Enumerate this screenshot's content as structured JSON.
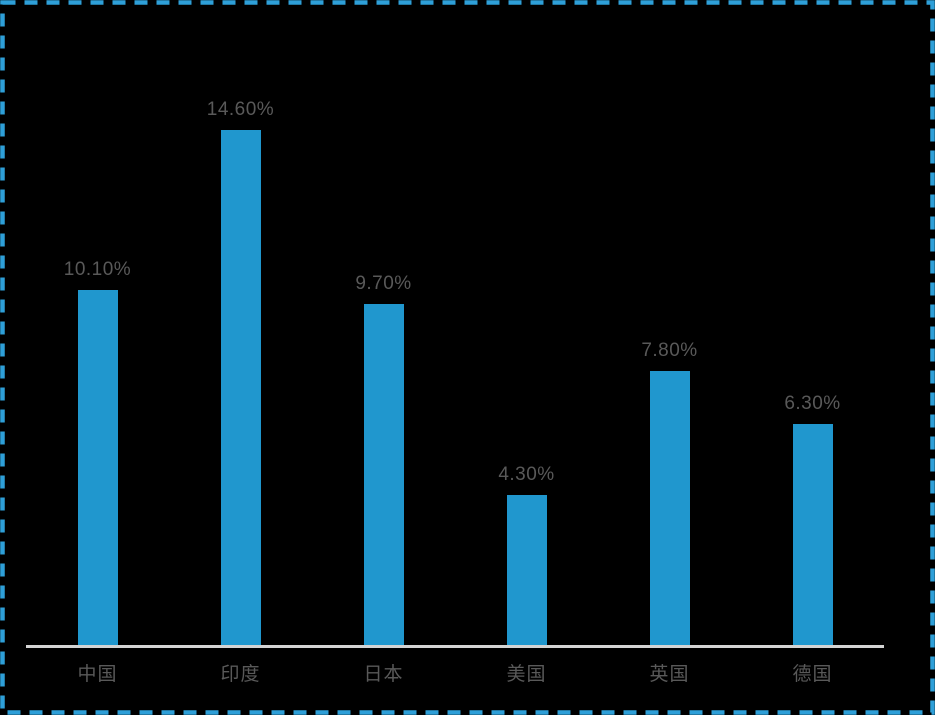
{
  "chart": {
    "background_color": "#000000",
    "border_color": "#2E9FD8",
    "bar_color": "#2097CE",
    "value_label_color": "#595959",
    "category_label_color": "#595959",
    "axis_line_color": "#D4D4D4"
  },
  "chart_data": {
    "type": "bar",
    "categories": [
      "中国",
      "印度",
      "日本",
      "美国",
      "英国",
      "德国"
    ],
    "values": [
      10.1,
      14.6,
      9.7,
      4.3,
      7.8,
      6.3
    ],
    "data_labels": [
      "10.10%",
      "14.60%",
      "9.70%",
      "4.30%",
      "7.80%",
      "6.30%"
    ],
    "title": "",
    "xlabel": "",
    "ylabel": "",
    "ylim": [
      0,
      16
    ],
    "grid": false,
    "legend": "none",
    "orientation": "vertical",
    "unit": "percent"
  }
}
